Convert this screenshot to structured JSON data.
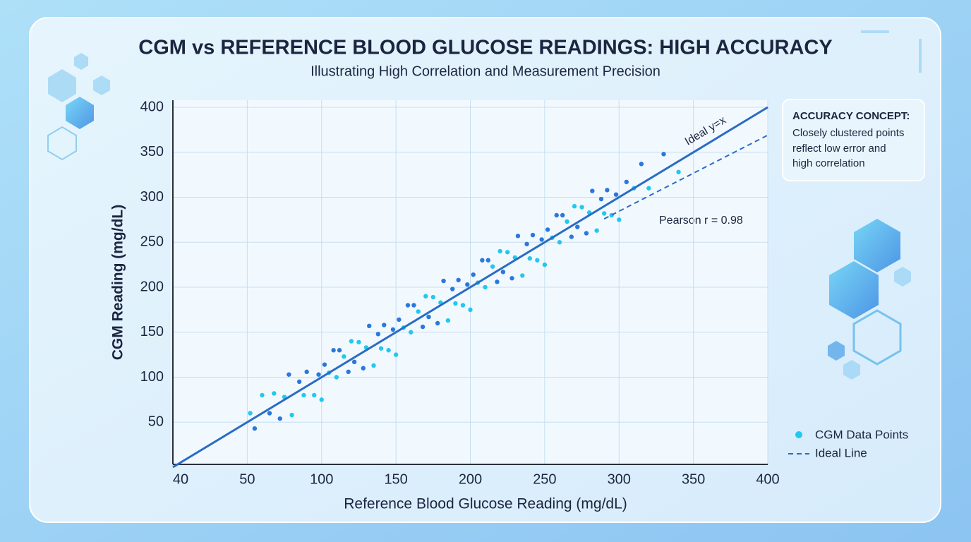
{
  "chart_data": {
    "type": "scatter",
    "title": "CGM vs REFERENCE BLOOD GLUCOSE READINGS: HIGH ACCURACY",
    "subtitle": "Illustrating High Correlation and Measurement Precision",
    "x_label": "Reference Blood Glucose Reading (mg/dL)",
    "y_label": "CGM Reading (mg/dL)",
    "axis_corner_label": "40",
    "xlim": [
      0,
      400
    ],
    "ylim": [
      0,
      400
    ],
    "xticks": [
      50,
      100,
      150,
      200,
      250,
      300,
      350,
      400
    ],
    "yticks": [
      50,
      100,
      150,
      200,
      250,
      300,
      350,
      400
    ],
    "grid": true,
    "series": [
      {
        "name": "CGM Data Points",
        "colors": [
          "#22c8ee",
          "#2a78dc"
        ],
        "x": [
          52,
          55,
          60,
          65,
          68,
          72,
          75,
          78,
          80,
          85,
          88,
          90,
          95,
          98,
          100,
          102,
          105,
          108,
          110,
          112,
          115,
          118,
          120,
          122,
          125,
          128,
          130,
          132,
          135,
          138,
          140,
          142,
          145,
          148,
          150,
          152,
          155,
          158,
          160,
          162,
          165,
          168,
          170,
          172,
          175,
          178,
          180,
          182,
          185,
          188,
          190,
          192,
          195,
          198,
          200,
          202,
          205,
          208,
          210,
          212,
          215,
          218,
          220,
          222,
          225,
          228,
          230,
          232,
          235,
          238,
          240,
          242,
          245,
          248,
          250,
          252,
          255,
          258,
          260,
          262,
          265,
          268,
          270,
          272,
          275,
          278,
          280,
          282,
          285,
          288,
          290,
          292,
          295,
          298,
          300,
          305,
          310,
          315,
          320,
          330,
          340
        ],
        "values": [
          60,
          43,
          80,
          60,
          82,
          54,
          78,
          103,
          58,
          95,
          80,
          106,
          80,
          103,
          75,
          114,
          105,
          130,
          100,
          130,
          123,
          106,
          140,
          117,
          139,
          110,
          133,
          157,
          113,
          148,
          132,
          158,
          130,
          153,
          125,
          164,
          155,
          180,
          150,
          180,
          173,
          156,
          190,
          167,
          189,
          160,
          183,
          207,
          163,
          198,
          182,
          208,
          180,
          203,
          175,
          214,
          205,
          230,
          200,
          230,
          223,
          206,
          240,
          217,
          239,
          210,
          233,
          257,
          213,
          248,
          232,
          258,
          230,
          253,
          225,
          264,
          255,
          280,
          250,
          280,
          273,
          256,
          290,
          267,
          289,
          260,
          283,
          307,
          263,
          298,
          282,
          308,
          280,
          303,
          275,
          317,
          310,
          337,
          310,
          348,
          328
        ]
      }
    ],
    "reference_line": {
      "label": "Ideal y=x",
      "color": "#2a6cc4",
      "x": [
        0,
        400
      ],
      "y": [
        0,
        400
      ]
    },
    "lines": [
      {
        "name": "Ideal Line",
        "color": "#2a6cc4",
        "style": "dashed",
        "x": [
          290,
          400
        ],
        "y": [
          276,
          369
        ]
      }
    ],
    "annotation": "Pearson r = 0.98",
    "concept_box": {
      "title": "ACCURACY CONCEPT:",
      "lines": [
        "Closely clustered points",
        "reflect low error and",
        "high correlation"
      ]
    }
  }
}
